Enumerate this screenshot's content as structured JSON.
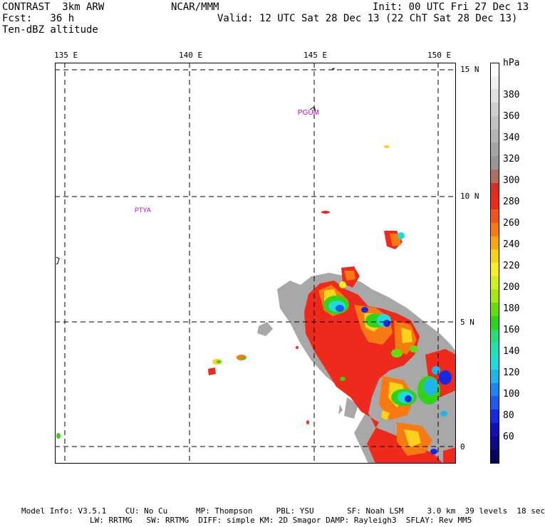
{
  "header": {
    "model": "CONTRAST  3km ARW",
    "org": "NCAR/MMM",
    "init": "Init: 00 UTC Fri 27 Dec 13",
    "fcst": "Fcst:   36 h",
    "valid": "Valid: 12 UTC Sat 28 Dec 13 (22 ChT Sat 28 Dec 13)",
    "field": "Ten-dBZ altitude"
  },
  "axes": {
    "lon_labels": [
      "135 E",
      "140 E",
      "145 E",
      "150 E"
    ],
    "lat_labels": [
      "15 N",
      "10 N",
      "5 N",
      "0"
    ]
  },
  "places": [
    "PGUM",
    "PTYA"
  ],
  "colorbar": {
    "unit": "hPa",
    "labels": [
      "380",
      "360",
      "340",
      "320",
      "300",
      "280",
      "260",
      "240",
      "220",
      "200",
      "180",
      "160",
      "140",
      "120",
      "100",
      "80",
      "60"
    ],
    "colors": [
      "#ffffff",
      "#f0f0f0",
      "#e0e0e0",
      "#cfcfcf",
      "#c2c2c2",
      "#b4b4b4",
      "#a5a5a5",
      "#979797",
      "#b07060",
      "#d83020",
      "#ee2a1c",
      "#f2541a",
      "#f87a12",
      "#fca612",
      "#fcd21a",
      "#f8f020",
      "#d2f01c",
      "#a6e814",
      "#66dc10",
      "#30d21a",
      "#28dc78",
      "#22e0b4",
      "#1edcdc",
      "#20b4ec",
      "#1e86ee",
      "#1e5aee",
      "#1628e6",
      "#1010b4",
      "#0a0a8c",
      "#05055e"
    ]
  },
  "footer": {
    "line1": "Model Info: V3.5.1    CU: No Cu      MP: Thompson     PBL: YSU       SF: Noah LSM     3.0 km  39 levels  18 sec",
    "line2": "LW: RRTMG   SW: RRTMG  DIFF: simple KM: 2D Smagor DAMP: Rayleigh3  SFLAY: Rev MM5"
  }
}
